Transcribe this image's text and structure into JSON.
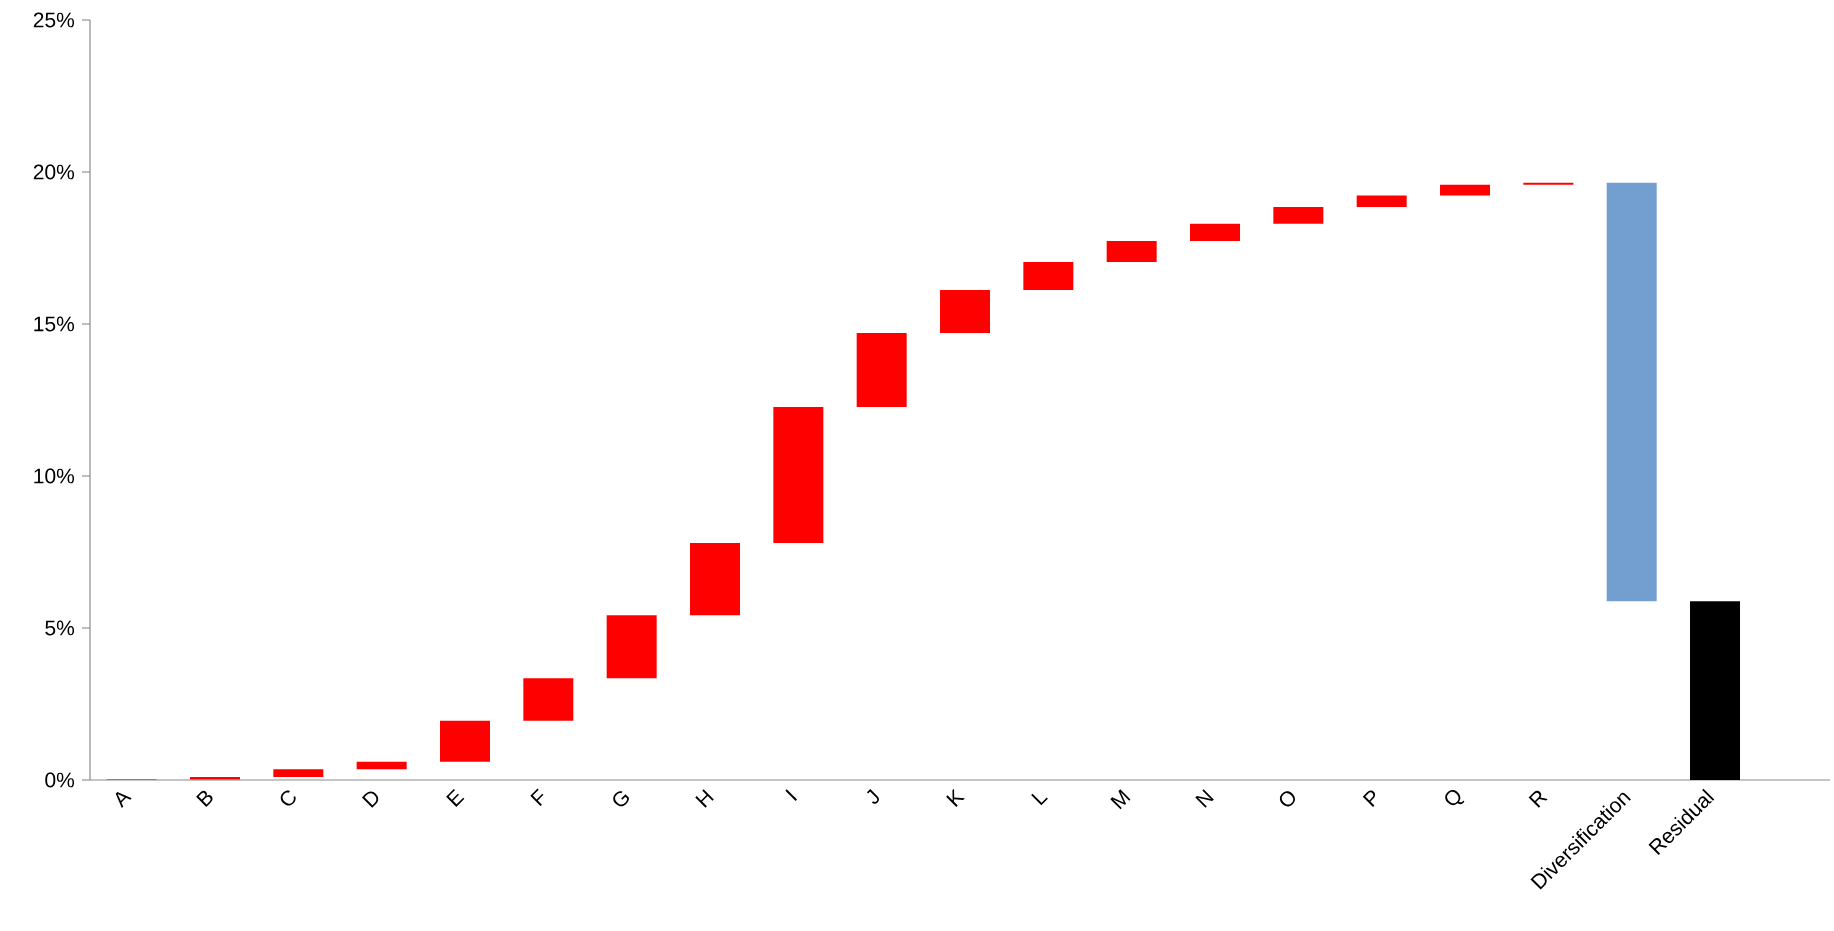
{
  "chart_data": {
    "type": "bar",
    "categories": [
      "A",
      "B",
      "C",
      "D",
      "E",
      "F",
      "G",
      "H",
      "I",
      "J",
      "K",
      "L",
      "M",
      "N",
      "O",
      "P",
      "Q",
      "R",
      "Diversification",
      "Residual"
    ],
    "base": [
      0,
      0.02,
      0.1,
      0.35,
      0.6,
      1.95,
      3.35,
      5.42,
      7.8,
      12.27,
      14.7,
      16.12,
      17.04,
      17.73,
      18.3,
      18.85,
      19.23,
      19.58,
      19.65,
      0
    ],
    "values": [
      0.02,
      0.08,
      0.25,
      0.25,
      1.35,
      1.4,
      2.07,
      2.38,
      4.47,
      2.43,
      1.42,
      0.92,
      0.69,
      0.57,
      0.55,
      0.38,
      0.35,
      0.07,
      -13.77,
      5.88
    ],
    "colors": [
      "#ff0000",
      "#ff0000",
      "#ff0000",
      "#ff0000",
      "#ff0000",
      "#ff0000",
      "#ff0000",
      "#ff0000",
      "#ff0000",
      "#ff0000",
      "#ff0000",
      "#ff0000",
      "#ff0000",
      "#ff0000",
      "#ff0000",
      "#ff0000",
      "#ff0000",
      "#ff0000",
      "#729fcf",
      "#000000"
    ],
    "ylim": [
      0,
      25
    ],
    "yticks": [
      {
        "value": 0,
        "label": "0%"
      },
      {
        "value": 5,
        "label": "5%"
      },
      {
        "value": 10,
        "label": "10%"
      },
      {
        "value": 15,
        "label": "15%"
      },
      {
        "value": 20,
        "label": "20%"
      },
      {
        "value": 25,
        "label": "25%"
      }
    ]
  }
}
